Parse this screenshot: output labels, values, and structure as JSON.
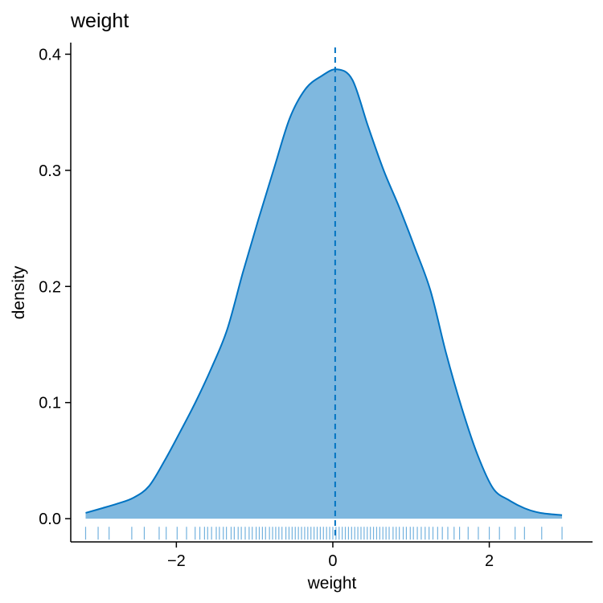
{
  "chart_data": {
    "type": "area",
    "title": "weight",
    "xlabel": "weight",
    "ylabel": "density",
    "xlim": [
      -3.35,
      3.32
    ],
    "ylim": [
      -0.02,
      0.41
    ],
    "x_ticks": [
      -2,
      0,
      2
    ],
    "x_tick_labels": [
      "−2",
      "0",
      "2"
    ],
    "y_ticks": [
      0.0,
      0.1,
      0.2,
      0.3,
      0.4
    ],
    "y_tick_labels": [
      "0.0",
      "0.1",
      "0.2",
      "0.3",
      "0.4"
    ],
    "grid": false,
    "legend": "none",
    "series": [
      {
        "x": [
          -3.16,
          -2.95,
          -2.75,
          -2.55,
          -2.35,
          -2.15,
          -1.95,
          -1.75,
          -1.55,
          -1.35,
          -1.15,
          -0.95,
          -0.75,
          -0.55,
          -0.35,
          -0.15,
          0.05,
          0.25,
          0.45,
          0.65,
          0.85,
          1.05,
          1.25,
          1.45,
          1.65,
          1.85,
          2.05,
          2.25,
          2.45,
          2.65,
          2.93
        ],
        "y": [
          0.005,
          0.009,
          0.013,
          0.018,
          0.028,
          0.05,
          0.075,
          0.101,
          0.13,
          0.163,
          0.212,
          0.258,
          0.302,
          0.345,
          0.37,
          0.381,
          0.387,
          0.378,
          0.338,
          0.3,
          0.268,
          0.233,
          0.196,
          0.142,
          0.095,
          0.055,
          0.026,
          0.016,
          0.009,
          0.005,
          0.003
        ]
      }
    ],
    "mean_line_x": 0.03,
    "rug_x": [
      -3.16,
      -3.0,
      -2.86,
      -2.57,
      -2.41,
      -2.22,
      -2.13,
      -1.99,
      -1.87,
      -1.76,
      -1.7,
      -1.64,
      -1.6,
      -1.55,
      -1.49,
      -1.45,
      -1.4,
      -1.36,
      -1.3,
      -1.26,
      -1.21,
      -1.17,
      -1.12,
      -1.07,
      -1.03,
      -0.98,
      -0.94,
      -0.9,
      -0.86,
      -0.81,
      -0.77,
      -0.73,
      -0.69,
      -0.65,
      -0.6,
      -0.56,
      -0.52,
      -0.48,
      -0.44,
      -0.4,
      -0.36,
      -0.32,
      -0.28,
      -0.24,
      -0.2,
      -0.16,
      -0.12,
      -0.08,
      -0.04,
      0.0,
      0.04,
      0.08,
      0.12,
      0.16,
      0.2,
      0.24,
      0.28,
      0.32,
      0.36,
      0.4,
      0.44,
      0.48,
      0.52,
      0.56,
      0.6,
      0.64,
      0.68,
      0.72,
      0.77,
      0.81,
      0.85,
      0.9,
      0.94,
      0.99,
      1.03,
      1.08,
      1.13,
      1.18,
      1.23,
      1.28,
      1.34,
      1.4,
      1.47,
      1.55,
      1.62,
      1.73,
      1.86,
      2.0,
      2.13,
      2.33,
      2.45,
      2.67,
      2.93
    ],
    "colors": {
      "fill": "#7fb8df",
      "line": "#0073c2",
      "axis": "#000000"
    }
  }
}
